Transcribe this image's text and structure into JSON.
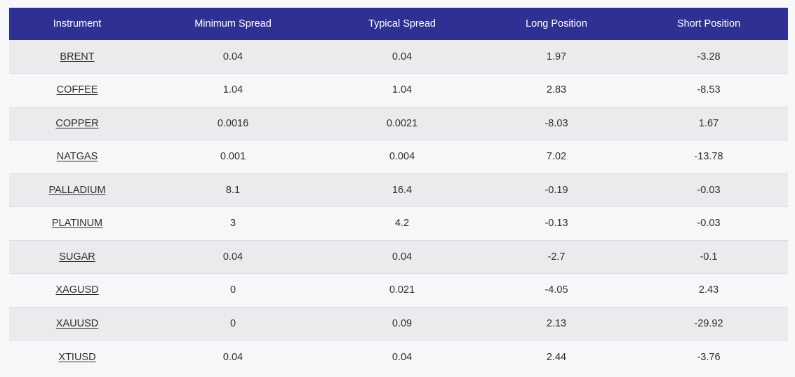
{
  "table": {
    "headers": [
      "Instrument",
      "Minimum Spread",
      "Typical Spread",
      "Long Position",
      "Short Position"
    ],
    "rows": [
      [
        "BRENT",
        "0.04",
        "0.04",
        "1.97",
        "-3.28"
      ],
      [
        "COFFEE",
        "1.04",
        "1.04",
        "2.83",
        "-8.53"
      ],
      [
        "COPPER",
        "0.0016",
        "0.0021",
        "-8.03",
        "1.67"
      ],
      [
        "NATGAS",
        "0.001",
        "0.004",
        "7.02",
        "-13.78"
      ],
      [
        "PALLADIUM",
        "8.1",
        "16.4",
        "-0.19",
        "-0.03"
      ],
      [
        "PLATINUM",
        "3",
        "4.2",
        "-0.13",
        "-0.03"
      ],
      [
        "SUGAR",
        "0.04",
        "0.04",
        "-2.7",
        "-0.1"
      ],
      [
        "XAGUSD",
        "0",
        "0.021",
        "-4.05",
        "2.43"
      ],
      [
        "XAUUSD",
        "0",
        "0.09",
        "2.13",
        "-29.92"
      ],
      [
        "XTIUSD",
        "0.04",
        "0.04",
        "2.44",
        "-3.76"
      ]
    ]
  },
  "colors": {
    "header_bg": "#2e3192",
    "header_text": "#ffffff",
    "row_odd": "#eaebed",
    "row_even": "#f6f7f9",
    "page_bg": "#f7f8fa"
  }
}
